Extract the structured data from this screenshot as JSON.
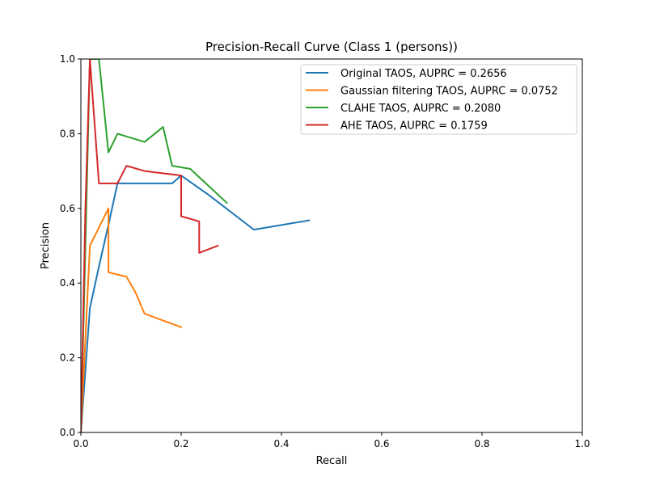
{
  "chart_data": {
    "type": "line",
    "title": "Precision-Recall Curve (Class 1 (persons))",
    "xlabel": "Recall",
    "ylabel": "Precision",
    "xlim": [
      0,
      1
    ],
    "ylim": [
      0,
      1
    ],
    "xticks": [
      "0.0",
      "0.2",
      "0.4",
      "0.6",
      "0.8",
      "1.0"
    ],
    "yticks": [
      "0.0",
      "0.2",
      "0.4",
      "0.6",
      "0.8",
      "1.0"
    ],
    "grid": false,
    "legend_position": "top-right",
    "series": [
      {
        "name": "Original TAOS, AUPRC = 0.2656",
        "color": "#1f77b4",
        "x": [
          0.0,
          0.018,
          0.036,
          0.055,
          0.073,
          0.091,
          0.182,
          0.2,
          0.255,
          0.345,
          0.455
        ],
        "y": [
          0.0,
          0.333,
          0.444,
          0.556,
          0.667,
          0.667,
          0.667,
          0.688,
          0.636,
          0.543,
          0.568
        ]
      },
      {
        "name": "Gaussian filtering TAOS, AUPRC = 0.0752",
        "color": "#ff7f0e",
        "x": [
          0.0,
          0.018,
          0.055,
          0.055,
          0.091,
          0.109,
          0.127,
          0.2
        ],
        "y": [
          0.0,
          0.5,
          0.6,
          0.429,
          0.417,
          0.375,
          0.318,
          0.282
        ]
      },
      {
        "name": "CLAHE TAOS, AUPRC = 0.2080",
        "color": "#2ca02c",
        "x": [
          0.0,
          0.018,
          0.036,
          0.055,
          0.073,
          0.127,
          0.164,
          0.182,
          0.218,
          0.291
        ],
        "y": [
          0.0,
          1.0,
          1.0,
          0.75,
          0.8,
          0.778,
          0.818,
          0.714,
          0.706,
          0.615
        ]
      },
      {
        "name": "AHE TAOS, AUPRC = 0.1759",
        "color": "#d62728",
        "x": [
          0.0,
          0.009,
          0.018,
          0.036,
          0.073,
          0.091,
          0.127,
          0.2,
          0.2,
          0.236,
          0.236,
          0.273
        ],
        "y": [
          0.0,
          0.6,
          1.0,
          0.667,
          0.667,
          0.714,
          0.7,
          0.688,
          0.579,
          0.565,
          0.481,
          0.5
        ]
      }
    ]
  }
}
